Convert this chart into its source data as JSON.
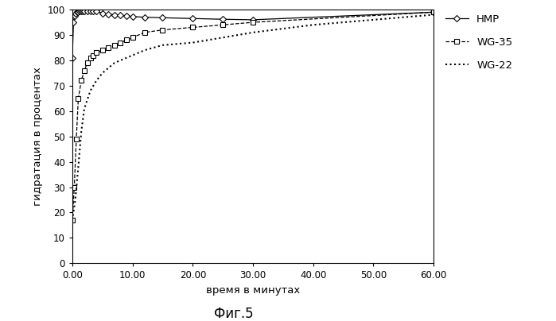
{
  "title": "Фиг.5",
  "xlabel": "время в минутах",
  "ylabel": "гидратация в процентах",
  "xlim": [
    0,
    60
  ],
  "ylim": [
    0,
    100
  ],
  "xticks": [
    0,
    10,
    20,
    30,
    40,
    50,
    60
  ],
  "xtick_labels": [
    "0.00",
    "10.00",
    "20.00",
    "30.00",
    "40.00",
    "50.00",
    "60.00"
  ],
  "yticks": [
    0,
    10,
    20,
    30,
    40,
    50,
    60,
    70,
    80,
    90,
    100
  ],
  "background_color": "#ffffff",
  "HMP": {
    "label": "HMP",
    "color": "#000000",
    "linestyle": "-",
    "marker": "D",
    "markersize": 4,
    "x": [
      0.0,
      0.2,
      0.4,
      0.6,
      0.8,
      1.0,
      1.25,
      1.5,
      1.75,
      2.0,
      2.5,
      3.0,
      3.5,
      4.0,
      5.0,
      6.0,
      7.0,
      8.0,
      9.0,
      10.0,
      12.0,
      15.0,
      20.0,
      25.0,
      30.0,
      60.0
    ],
    "y": [
      81,
      95,
      97.5,
      98.5,
      99,
      99.2,
      99.3,
      99.4,
      99.5,
      99.5,
      99.5,
      99.5,
      99.5,
      99.5,
      98.5,
      98.2,
      98.0,
      97.8,
      97.5,
      97.3,
      97.0,
      96.8,
      96.5,
      96.2,
      96.0,
      99.0
    ]
  },
  "WG35": {
    "label": "WG-35",
    "color": "#000000",
    "linestyle": "--",
    "marker": "s",
    "markersize": 4,
    "x": [
      0.0,
      0.33,
      0.67,
      1.0,
      1.5,
      2.0,
      2.5,
      3.0,
      3.5,
      4.0,
      5.0,
      6.0,
      7.0,
      8.0,
      9.0,
      10.0,
      12.0,
      15.0,
      20.0,
      25.0,
      30.0,
      60.0
    ],
    "y": [
      17,
      30,
      49,
      65,
      72,
      76,
      79,
      81,
      82,
      83,
      84,
      85,
      86,
      87,
      88,
      89,
      91,
      92,
      93,
      94,
      95,
      99
    ]
  },
  "WG22": {
    "label": "WG-22",
    "color": "#000000",
    "linestyle": ":",
    "x": [
      0.0,
      0.5,
      1.0,
      1.5,
      2.0,
      3.0,
      4.0,
      5.0,
      6.0,
      7.0,
      8.0,
      10.0,
      12.0,
      15.0,
      20.0,
      25.0,
      30.0,
      40.0,
      50.0,
      60.0
    ],
    "y": [
      17,
      25,
      38,
      52,
      61,
      68,
      72,
      75,
      77,
      79,
      80,
      82,
      84,
      86,
      87,
      89,
      91,
      94,
      96,
      98
    ]
  }
}
